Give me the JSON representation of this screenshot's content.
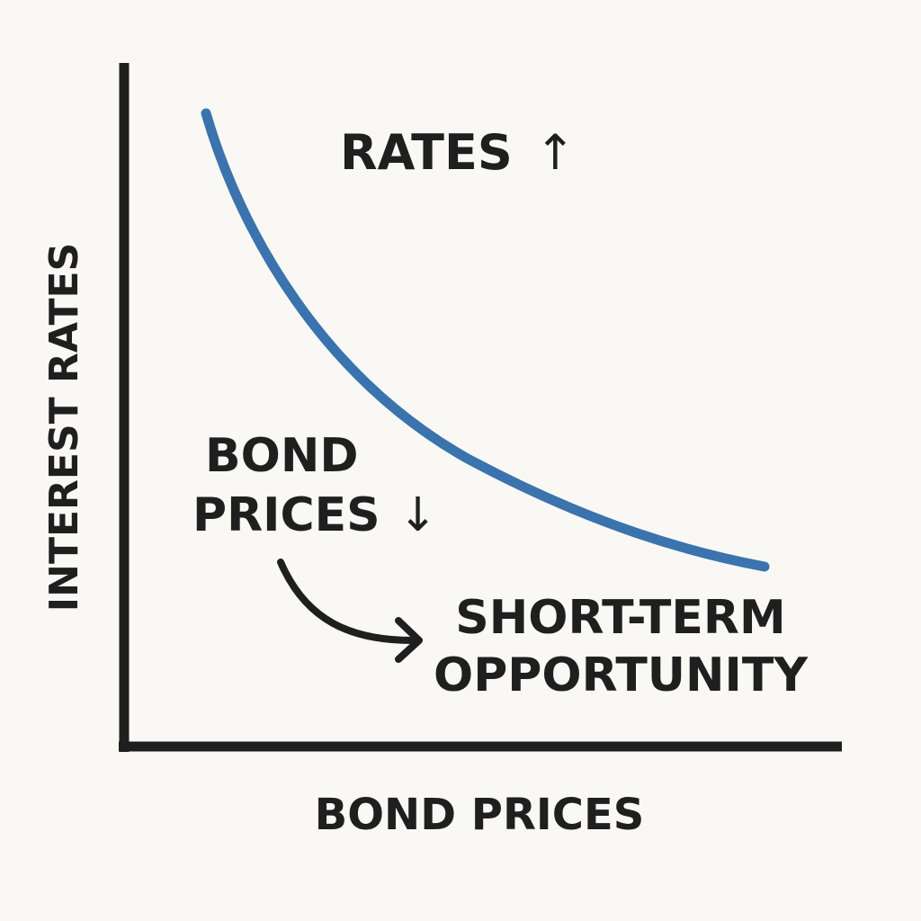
{
  "diagram": {
    "y_axis_label": "INTEREST RATES",
    "x_axis_label": "BOND PRICES",
    "rates_label": "RATES",
    "rates_arrow": "↑",
    "bond_prices_line1": "BOND",
    "bond_prices_line2": "PRICES",
    "bond_prices_arrow": "↓",
    "opportunity_line1": "SHORT-TERM",
    "opportunity_line2": "OPPORTUNITY"
  },
  "colors": {
    "curve": "#3a73ad",
    "axis": "#1f1f1f",
    "text": "#1f1f1f",
    "background": "#f9f8f4"
  }
}
